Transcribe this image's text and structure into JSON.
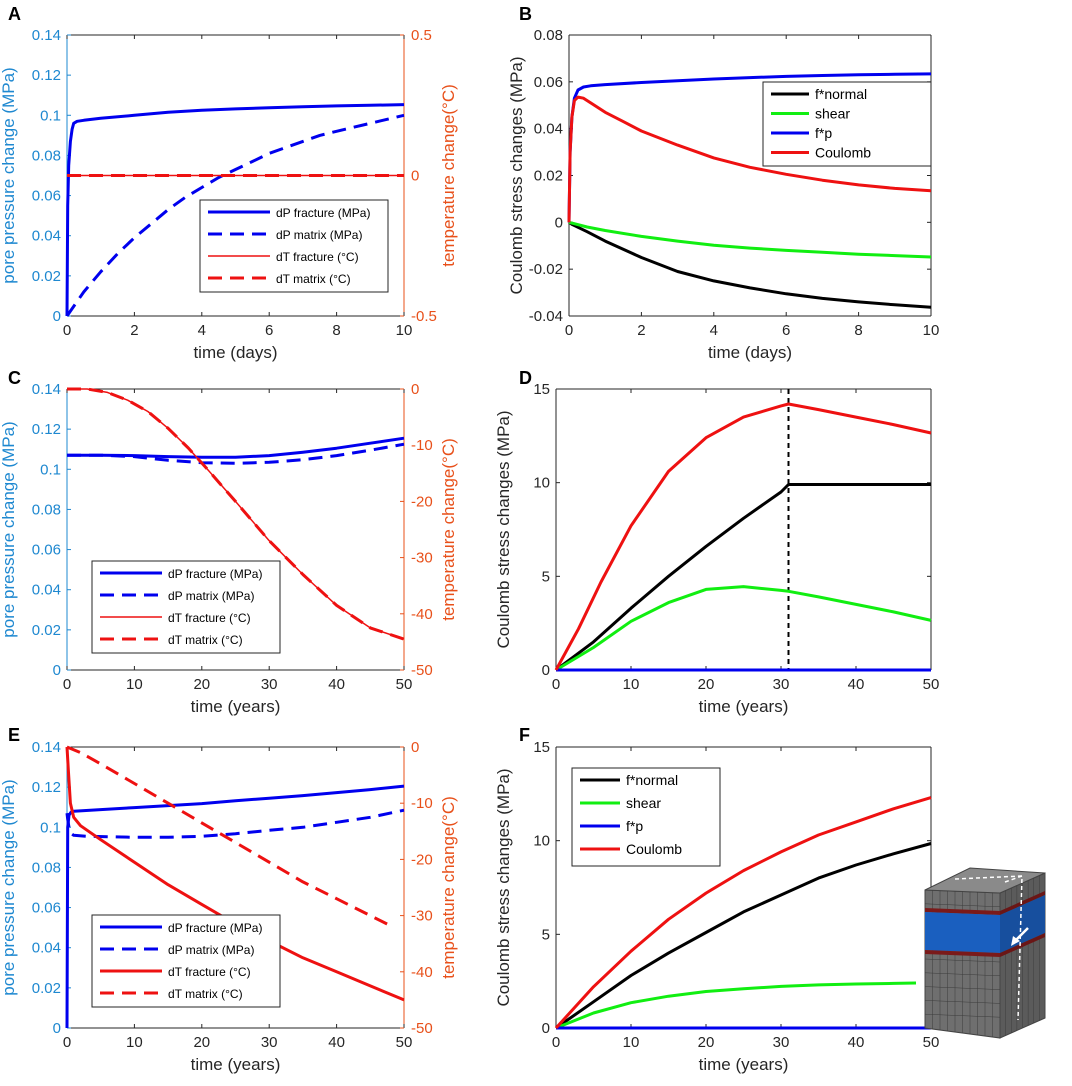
{
  "colors": {
    "blue": "#0000ee",
    "red": "#ee1111",
    "green": "#11ee11",
    "black": "#000000",
    "left_axis_blue": "#1e88d0",
    "right_axis_orange": "#e8501a",
    "axis_gray": "#262626"
  },
  "chart_data": [
    {
      "panel": "A",
      "type": "line",
      "xlabel": "time (days)",
      "ylabel": "pore pressure change (MPa)",
      "ylabel_right": "temperature change(°C)",
      "xlim": [
        0,
        10
      ],
      "ylim": [
        0,
        0.14
      ],
      "ylim_right": [
        -0.5,
        0.5
      ],
      "xticks": [
        "0",
        "2",
        "4",
        "6",
        "8",
        "10"
      ],
      "yticks": [
        "0",
        "0.02",
        "0.04",
        "0.06",
        "0.08",
        "0.1",
        "0.12",
        "0.14"
      ],
      "yticks_right": [
        "-0.5",
        "0",
        "0.5"
      ],
      "legend": "bottom-right",
      "series": [
        {
          "name": "dP fracture (MPa)",
          "axis": "left",
          "color": "blue",
          "style": "solid",
          "width": 3,
          "x": [
            0,
            0.02,
            0.05,
            0.1,
            0.15,
            0.2,
            0.3,
            0.5,
            1,
            2,
            3,
            4,
            5,
            6,
            7,
            8,
            9,
            10
          ],
          "y": [
            0,
            0.055,
            0.075,
            0.087,
            0.093,
            0.096,
            0.097,
            0.0975,
            0.0985,
            0.1,
            0.1015,
            0.1025,
            0.1032,
            0.1038,
            0.1043,
            0.1047,
            0.105,
            0.1053
          ]
        },
        {
          "name": "dP matrix (MPa)",
          "axis": "left",
          "color": "blue",
          "style": "dashed",
          "width": 3,
          "x": [
            0,
            0.5,
            1,
            1.5,
            2,
            2.5,
            3,
            3.5,
            4,
            4.5,
            5,
            5.5,
            6,
            6.5,
            7,
            7.5,
            8,
            8.5,
            9,
            9.5,
            10
          ],
          "y": [
            0,
            0.012,
            0.022,
            0.031,
            0.039,
            0.046,
            0.053,
            0.059,
            0.064,
            0.069,
            0.073,
            0.077,
            0.081,
            0.084,
            0.087,
            0.09,
            0.092,
            0.094,
            0.096,
            0.098,
            0.1
          ]
        },
        {
          "name": "dT fracture (°C)",
          "axis": "right",
          "color": "red",
          "style": "solid",
          "width": 1.5,
          "x": [
            0,
            10
          ],
          "y": [
            0,
            0
          ]
        },
        {
          "name": "dT matrix (°C)",
          "axis": "right",
          "color": "red",
          "style": "dashed",
          "width": 3,
          "x": [
            0,
            10
          ],
          "y": [
            0,
            0
          ]
        }
      ]
    },
    {
      "panel": "B",
      "type": "line",
      "xlabel": "time (days)",
      "ylabel": "Coulomb stress changes (MPa)",
      "xlim": [
        0,
        10
      ],
      "ylim": [
        -0.04,
        0.08
      ],
      "xticks": [
        "0",
        "2",
        "4",
        "6",
        "8",
        "10"
      ],
      "yticks": [
        "-0.04",
        "-0.02",
        "0",
        "0.02",
        "0.04",
        "0.06",
        "0.08"
      ],
      "legend": "top-right",
      "series": [
        {
          "name": "f*normal",
          "color": "black",
          "style": "solid",
          "width": 3,
          "x": [
            0,
            0.1,
            0.5,
            1,
            2,
            3,
            4,
            5,
            6,
            7,
            8,
            9,
            10
          ],
          "y": [
            0,
            -0.001,
            -0.004,
            -0.008,
            -0.015,
            -0.021,
            -0.025,
            -0.028,
            -0.0305,
            -0.0325,
            -0.034,
            -0.0352,
            -0.0363
          ]
        },
        {
          "name": "shear",
          "color": "green",
          "style": "solid",
          "width": 3,
          "x": [
            0,
            0.5,
            1,
            2,
            3,
            4,
            5,
            6,
            7,
            8,
            9,
            10
          ],
          "y": [
            0,
            -0.002,
            -0.0035,
            -0.006,
            -0.008,
            -0.0098,
            -0.011,
            -0.012,
            -0.0128,
            -0.0136,
            -0.0142,
            -0.0148
          ]
        },
        {
          "name": "f*p",
          "color": "blue",
          "style": "solid",
          "width": 3,
          "x": [
            0,
            0.03,
            0.08,
            0.15,
            0.25,
            0.4,
            0.6,
            1,
            2,
            3,
            4,
            5,
            6,
            7,
            8,
            9,
            10
          ],
          "y": [
            0,
            0.03,
            0.045,
            0.053,
            0.0565,
            0.0578,
            0.0583,
            0.0588,
            0.0597,
            0.0605,
            0.0612,
            0.0618,
            0.0623,
            0.0627,
            0.063,
            0.0632,
            0.0634
          ]
        },
        {
          "name": "Coulomb",
          "color": "red",
          "style": "solid",
          "width": 3,
          "x": [
            0,
            0.03,
            0.08,
            0.15,
            0.25,
            0.4,
            0.6,
            1,
            1.5,
            2,
            3,
            4,
            5,
            6,
            7,
            8,
            9,
            10
          ],
          "y": [
            0,
            0.03,
            0.045,
            0.052,
            0.0535,
            0.053,
            0.051,
            0.047,
            0.043,
            0.039,
            0.033,
            0.0275,
            0.0235,
            0.0205,
            0.018,
            0.016,
            0.0145,
            0.0135
          ]
        }
      ]
    },
    {
      "panel": "C",
      "type": "line",
      "xlabel": "time (years)",
      "ylabel": "pore pressure change (MPa)",
      "ylabel_right": "temperature change(°C)",
      "xlim": [
        0,
        50
      ],
      "ylim": [
        0,
        0.14
      ],
      "ylim_right": [
        -50,
        0
      ],
      "xticks": [
        "0",
        "10",
        "20",
        "30",
        "40",
        "50"
      ],
      "yticks": [
        "0",
        "0.02",
        "0.04",
        "0.06",
        "0.08",
        "0.1",
        "0.12",
        "0.14"
      ],
      "yticks_right": [
        "-50",
        "-40",
        "-30",
        "-20",
        "-10",
        "0"
      ],
      "legend": "bottom-left",
      "series": [
        {
          "name": "dP fracture (MPa)",
          "axis": "left",
          "color": "blue",
          "style": "solid",
          "width": 3,
          "x": [
            0,
            5,
            10,
            15,
            20,
            25,
            30,
            35,
            40,
            45,
            50
          ],
          "y": [
            0.107,
            0.107,
            0.1068,
            0.1063,
            0.106,
            0.106,
            0.1068,
            0.1085,
            0.1105,
            0.113,
            0.1155
          ]
        },
        {
          "name": "dP matrix (MPa)",
          "axis": "left",
          "color": "blue",
          "style": "dashed",
          "width": 3,
          "x": [
            0,
            5,
            10,
            15,
            20,
            25,
            30,
            35,
            40,
            45,
            50
          ],
          "y": [
            0.107,
            0.107,
            0.1063,
            0.1045,
            0.1033,
            0.103,
            0.1035,
            0.1048,
            0.1068,
            0.1095,
            0.1125
          ]
        },
        {
          "name": "dT fracture (°C)",
          "axis": "right",
          "color": "red",
          "style": "solid",
          "width": 1.5,
          "x": [
            0,
            3,
            6,
            9,
            12,
            15,
            18,
            21,
            25,
            30,
            35,
            40,
            45,
            50
          ],
          "y": [
            0,
            0,
            -0.6,
            -2,
            -4,
            -7,
            -10.5,
            -14.5,
            -20,
            -27,
            -33,
            -38.5,
            -42.5,
            -44.5
          ]
        },
        {
          "name": "dT matrix (°C)",
          "axis": "right",
          "color": "red",
          "style": "dashed",
          "width": 3,
          "x": [
            0,
            3,
            6,
            9,
            12,
            15,
            18,
            21,
            25,
            30,
            35,
            40,
            45,
            50
          ],
          "y": [
            0,
            0,
            -0.6,
            -2,
            -4,
            -7,
            -10.5,
            -14.5,
            -20,
            -27,
            -33,
            -38.5,
            -42.5,
            -44.5
          ]
        }
      ]
    },
    {
      "panel": "D",
      "type": "line",
      "xlabel": "time (years)",
      "ylabel": "Coulomb stress changes (MPa)",
      "xlim": [
        0,
        50
      ],
      "ylim": [
        0,
        15
      ],
      "xticks": [
        "0",
        "10",
        "20",
        "30",
        "40",
        "50"
      ],
      "yticks": [
        "0",
        "5",
        "10",
        "15"
      ],
      "vline_x": 31,
      "series": [
        {
          "name": "f*normal",
          "color": "black",
          "style": "solid",
          "width": 3,
          "x": [
            0,
            5,
            10,
            15,
            20,
            25,
            30,
            31,
            35,
            40,
            45,
            50
          ],
          "y": [
            0,
            1.5,
            3.3,
            5.0,
            6.6,
            8.1,
            9.5,
            9.9,
            9.9,
            9.9,
            9.9,
            9.9
          ]
        },
        {
          "name": "shear",
          "color": "green",
          "style": "solid",
          "width": 3,
          "x": [
            0,
            5,
            10,
            15,
            20,
            25,
            30,
            31,
            35,
            40,
            45,
            50
          ],
          "y": [
            0,
            1.2,
            2.6,
            3.6,
            4.3,
            4.45,
            4.25,
            4.2,
            3.9,
            3.5,
            3.1,
            2.65
          ]
        },
        {
          "name": "f*p",
          "color": "blue",
          "style": "solid",
          "width": 3,
          "x": [
            0,
            50
          ],
          "y": [
            0,
            0
          ]
        },
        {
          "name": "Coulomb",
          "color": "red",
          "style": "solid",
          "width": 3,
          "x": [
            0,
            3,
            6,
            10,
            15,
            20,
            25,
            30,
            31,
            35,
            40,
            45,
            50
          ],
          "y": [
            0,
            2.2,
            4.7,
            7.7,
            10.6,
            12.4,
            13.5,
            14.1,
            14.2,
            13.9,
            13.5,
            13.1,
            12.65
          ]
        }
      ]
    },
    {
      "panel": "E",
      "type": "line",
      "xlabel": "time (years)",
      "ylabel": "pore pressure change (MPa)",
      "ylabel_right": "temperature change(°C)",
      "xlim": [
        0,
        50
      ],
      "ylim": [
        0,
        0.14
      ],
      "ylim_right": [
        -50,
        0
      ],
      "xticks": [
        "0",
        "10",
        "20",
        "30",
        "40",
        "50"
      ],
      "yticks": [
        "0",
        "0.02",
        "0.04",
        "0.06",
        "0.08",
        "0.1",
        "0.12",
        "0.14"
      ],
      "yticks_right": [
        "-50",
        "-40",
        "-30",
        "-20",
        "-10",
        "0"
      ],
      "legend": "bottom-left",
      "series": [
        {
          "name": "dP fracture (MPa)",
          "axis": "left",
          "color": "blue",
          "style": "solid",
          "width": 3,
          "x": [
            0,
            0.1,
            0.3,
            0.6,
            1,
            5,
            10,
            15,
            20,
            25,
            30,
            35,
            40,
            45,
            50
          ],
          "y": [
            0,
            0.1,
            0.106,
            0.1075,
            0.108,
            0.1088,
            0.1098,
            0.1108,
            0.1118,
            0.1132,
            0.1145,
            0.1158,
            0.1173,
            0.1188,
            0.1205
          ]
        },
        {
          "name": "dP matrix (MPa)",
          "axis": "left",
          "color": "blue",
          "style": "dashed",
          "width": 3,
          "x": [
            0,
            0.1,
            0.3,
            0.6,
            1,
            3,
            6,
            10,
            15,
            20,
            25,
            30,
            35,
            40,
            45,
            50
          ],
          "y": [
            0.107,
            0.104,
            0.1,
            0.097,
            0.096,
            0.0955,
            0.0953,
            0.095,
            0.095,
            0.0955,
            0.0968,
            0.0985,
            0.1,
            0.1025,
            0.105,
            0.1085
          ]
        },
        {
          "name": "dT fracture (°C)",
          "axis": "right",
          "color": "red",
          "style": "solid",
          "width": 3,
          "x": [
            0,
            0.2,
            0.5,
            1,
            2,
            5,
            10,
            15,
            20,
            25,
            30,
            35,
            40,
            45,
            50
          ],
          "y": [
            0,
            -4,
            -10,
            -12.5,
            -14,
            -16.5,
            -20.5,
            -24.5,
            -28,
            -31.5,
            -34.5,
            -37.5,
            -40,
            -42.5,
            -45
          ]
        },
        {
          "name": "dT matrix (°C)",
          "axis": "right",
          "color": "red",
          "style": "dashed",
          "width": 3,
          "x": [
            0,
            2,
            5,
            10,
            15,
            20,
            25,
            30,
            35,
            40,
            45,
            48
          ],
          "y": [
            0,
            -1,
            -3,
            -6.5,
            -10,
            -13.5,
            -17,
            -20.5,
            -24,
            -27,
            -30,
            -31.8
          ]
        }
      ]
    },
    {
      "panel": "F",
      "type": "line",
      "xlabel": "time (years)",
      "ylabel": "Coulomb stress changes (MPa)",
      "xlim": [
        0,
        50
      ],
      "ylim": [
        0,
        15
      ],
      "xticks": [
        "0",
        "10",
        "20",
        "30",
        "40",
        "50"
      ],
      "yticks": [
        "0",
        "5",
        "10",
        "15"
      ],
      "legend": "top-left",
      "series": [
        {
          "name": "f*normal",
          "color": "black",
          "style": "solid",
          "width": 3,
          "x": [
            0,
            5,
            10,
            15,
            20,
            25,
            30,
            35,
            40,
            45,
            50
          ],
          "y": [
            0,
            1.4,
            2.8,
            4.0,
            5.1,
            6.2,
            7.1,
            8.0,
            8.7,
            9.3,
            9.85
          ]
        },
        {
          "name": "shear",
          "color": "green",
          "style": "solid",
          "width": 3,
          "x": [
            0,
            5,
            10,
            15,
            20,
            25,
            30,
            35,
            40,
            45,
            48
          ],
          "y": [
            0,
            0.8,
            1.35,
            1.7,
            1.95,
            2.1,
            2.22,
            2.3,
            2.35,
            2.38,
            2.4
          ]
        },
        {
          "name": "f*p",
          "color": "blue",
          "style": "solid",
          "width": 3,
          "x": [
            0,
            50
          ],
          "y": [
            0,
            0
          ]
        },
        {
          "name": "Coulomb",
          "color": "red",
          "style": "solid",
          "width": 3,
          "x": [
            0,
            5,
            10,
            15,
            20,
            25,
            30,
            35,
            40,
            45,
            50
          ],
          "y": [
            0,
            2.2,
            4.1,
            5.8,
            7.2,
            8.4,
            9.4,
            10.3,
            11.0,
            11.7,
            12.3
          ]
        }
      ]
    }
  ]
}
